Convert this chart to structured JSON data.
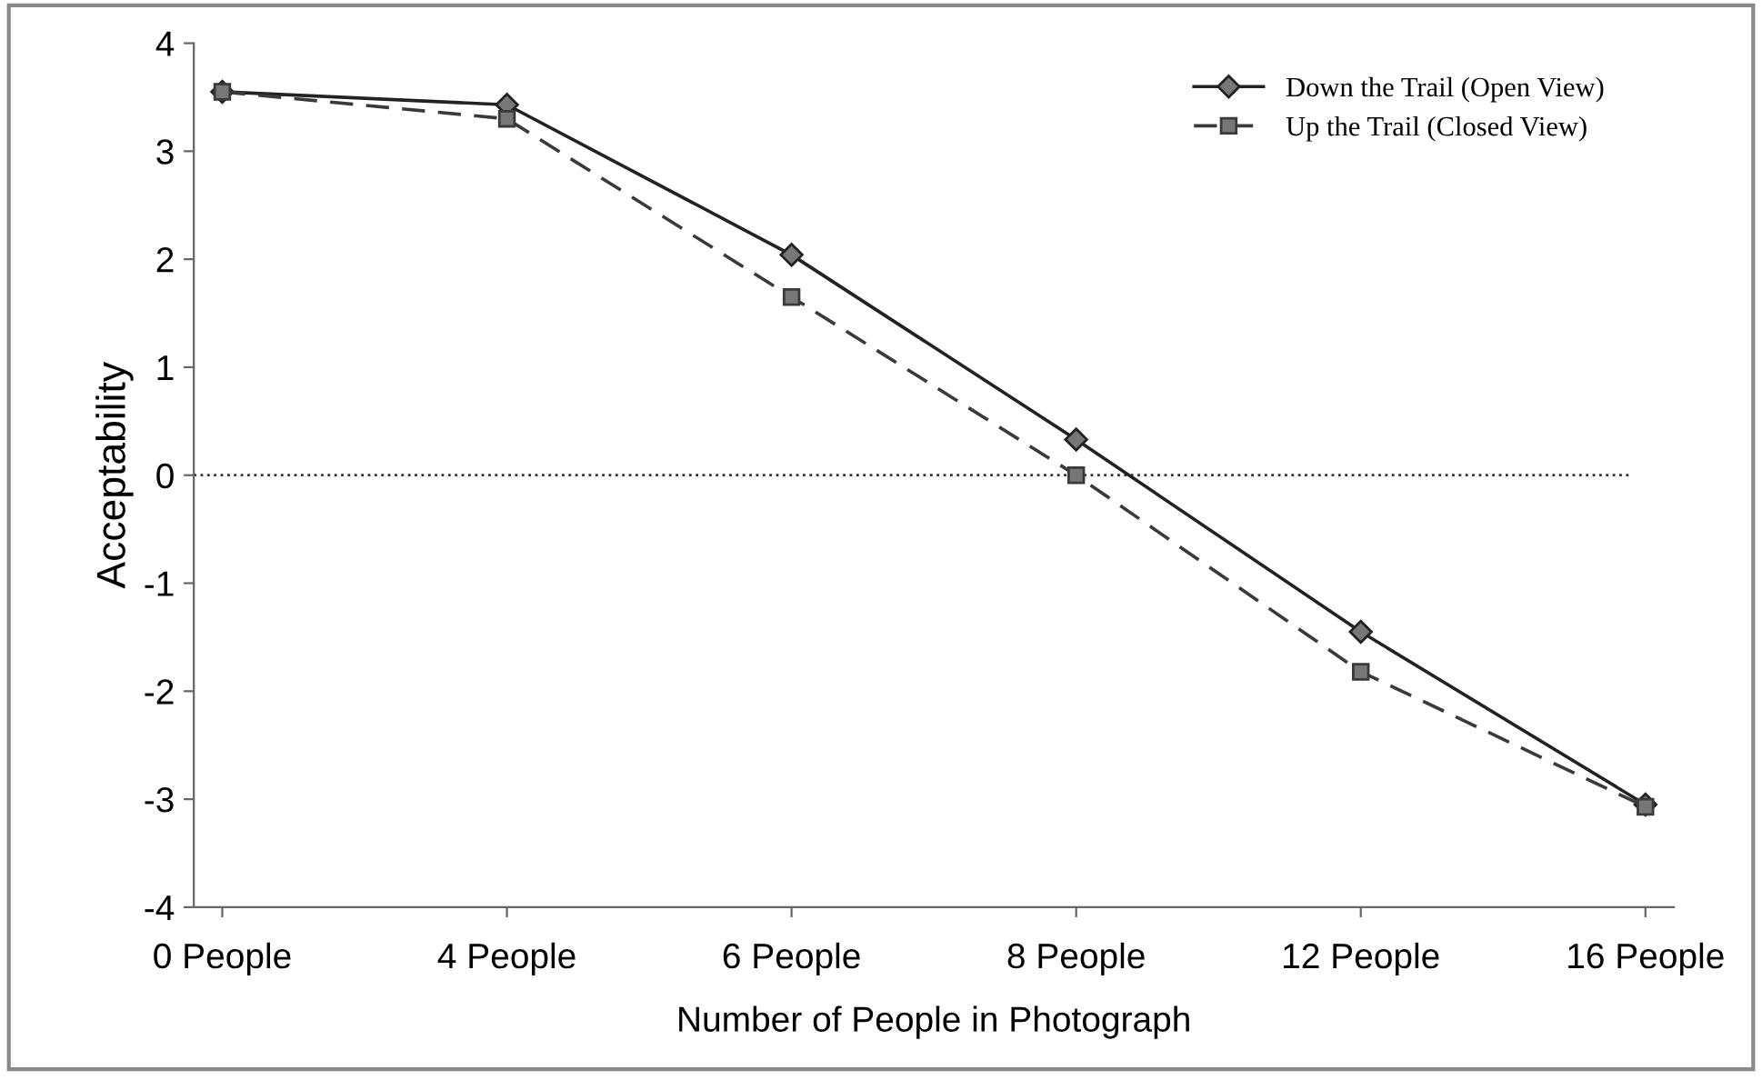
{
  "chart_data": {
    "type": "line",
    "xlabel": "Number of People in Photograph",
    "ylabel": "Acceptability",
    "categories": [
      "0 People",
      "4 People",
      "6 People",
      "8 People",
      "12 People",
      "16 People"
    ],
    "series": [
      {
        "name": "Down the Trail (Open View)",
        "color": "#222222",
        "values": [
          3.55,
          3.43,
          2.04,
          0.33,
          -1.45,
          -3.05
        ],
        "marker": "diamond",
        "line_style": "solid"
      },
      {
        "name": "Up the Trail (Closed View)",
        "color": "#3a3a3a",
        "values": [
          3.55,
          3.3,
          1.65,
          0.0,
          -1.82,
          -3.07
        ],
        "marker": "square",
        "line_style": "dashed"
      }
    ],
    "ylim": [
      -4,
      4
    ],
    "yticks": [
      -4,
      -3,
      -2,
      -1,
      0,
      1,
      2,
      3,
      4
    ],
    "ref_lines": [
      {
        "axis": "y",
        "value": 0,
        "color": "#333333",
        "line_style": "dotted"
      }
    ],
    "grid": false,
    "legend": "top right"
  }
}
